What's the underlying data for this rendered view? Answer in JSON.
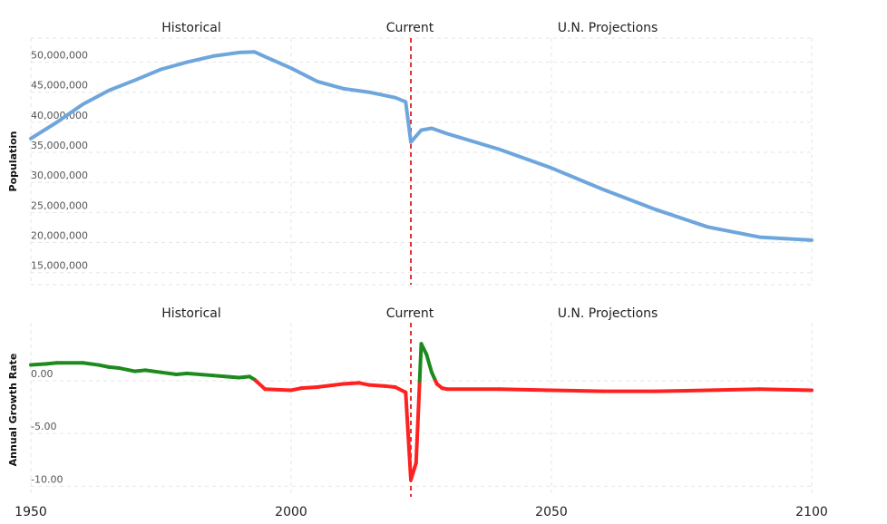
{
  "chart_data": [
    {
      "type": "line",
      "ylabel": "Population",
      "ylim": [
        13000000,
        54000000
      ],
      "y_ticks": [
        "50,000,000",
        "45,000,000",
        "40,000,000",
        "35,000,000",
        "30,000,000",
        "25,000,000",
        "20,000,000",
        "15,000,000"
      ],
      "y_tick_values": [
        50000000,
        45000000,
        40000000,
        35000000,
        30000000,
        25000000,
        20000000,
        15000000
      ],
      "x_range": [
        1950,
        2100
      ],
      "current_year": 2023,
      "era_labels": {
        "historical": "Historical",
        "current": "Current",
        "projections": "U.N. Projections"
      },
      "line_color": "#6ea6dc",
      "series": [
        {
          "x": [
            1950,
            1955,
            1960,
            1965,
            1970,
            1975,
            1980,
            1985,
            1990,
            1993,
            1995,
            2000,
            2005,
            2010,
            2015,
            2020,
            2022,
            2023,
            2025,
            2027,
            2030,
            2040,
            2050,
            2060,
            2070,
            2080,
            2090,
            2100
          ],
          "values": [
            37300000,
            40000000,
            43000000,
            45300000,
            47000000,
            48800000,
            50000000,
            51000000,
            51600000,
            51700000,
            50900000,
            49000000,
            46800000,
            45600000,
            45000000,
            44100000,
            43400000,
            36700000,
            38700000,
            39000000,
            38100000,
            35500000,
            32400000,
            28800000,
            25500000,
            22600000,
            20900000,
            20400000
          ]
        }
      ]
    },
    {
      "type": "line",
      "ylabel": "Annual Growth Rate",
      "ylim": [
        -11,
        5.5
      ],
      "y_ticks": [
        "0.00",
        "-5.00",
        "-10.00"
      ],
      "y_tick_values": [
        0,
        -5,
        -10
      ],
      "x_ticks": [
        "1950",
        "2000",
        "2050",
        "2100"
      ],
      "x_tick_values": [
        1950,
        2000,
        2050,
        2100
      ],
      "x_range": [
        1950,
        2100
      ],
      "current_year": 2023,
      "era_labels": {
        "historical": "Historical",
        "current": "Current",
        "projections": "U.N. Projections"
      },
      "positive_color": "#1e8a1e",
      "negative_color": "#ff2020",
      "series": [
        {
          "x": [
            1950,
            1953,
            1955,
            1960,
            1963,
            1965,
            1967,
            1970,
            1972,
            1975,
            1978,
            1980,
            1985,
            1990,
            1992,
            1993,
            1995,
            2000,
            2002,
            2005,
            2010,
            2013,
            2015,
            2018,
            2020,
            2022,
            2023,
            2024,
            2025,
            2026,
            2027,
            2028,
            2029,
            2030,
            2040,
            2050,
            2060,
            2070,
            2080,
            2090,
            2100
          ],
          "values": [
            1.5,
            1.6,
            1.7,
            1.7,
            1.5,
            1.3,
            1.2,
            0.9,
            1.0,
            0.8,
            0.6,
            0.7,
            0.5,
            0.3,
            0.4,
            0.1,
            -0.8,
            -0.9,
            -0.7,
            -0.6,
            -0.3,
            -0.2,
            -0.4,
            -0.5,
            -0.6,
            -1.1,
            -9.4,
            -7.8,
            3.5,
            2.5,
            0.8,
            -0.3,
            -0.7,
            -0.8,
            -0.8,
            -0.9,
            -1.0,
            -1.0,
            -0.9,
            -0.8,
            -0.9
          ]
        }
      ]
    }
  ]
}
